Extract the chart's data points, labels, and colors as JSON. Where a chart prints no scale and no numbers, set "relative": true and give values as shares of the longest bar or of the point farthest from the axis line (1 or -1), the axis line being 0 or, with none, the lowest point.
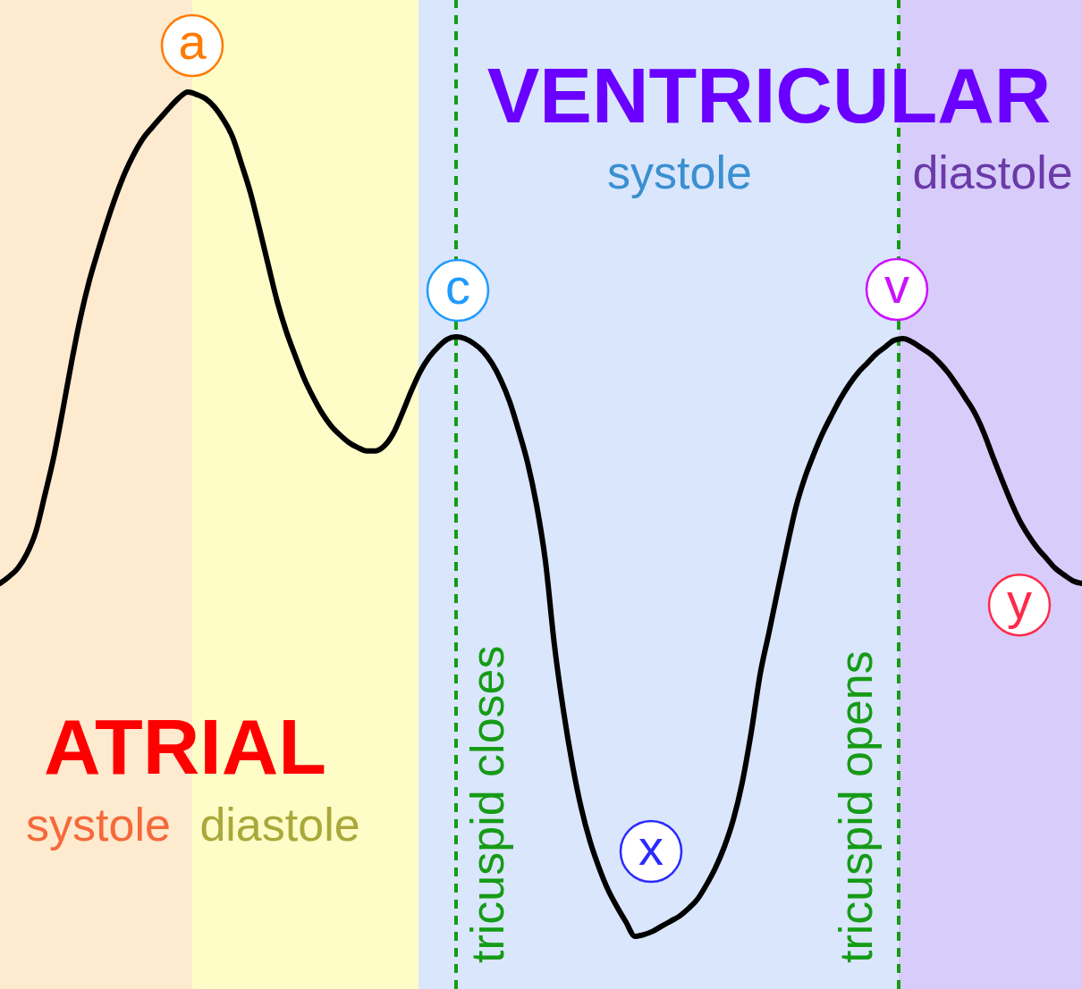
{
  "chart_data": {
    "type": "line",
    "relative": true,
    "tick_labels": false,
    "marker": "none",
    "color": "#000000",
    "categories": [
      null,
      null,
      null,
      null,
      null,
      null,
      null,
      null,
      null,
      null,
      null,
      null,
      null,
      null,
      null,
      null,
      null,
      null,
      null,
      null,
      null,
      null,
      null,
      null,
      null,
      null,
      null,
      null,
      null,
      null,
      null,
      null,
      null,
      null,
      null,
      null,
      null,
      null,
      null,
      null,
      null,
      null,
      null,
      null,
      null,
      null,
      null,
      null,
      null,
      null,
      null,
      null,
      null,
      null,
      null,
      null,
      null,
      null,
      null,
      null,
      null,
      null,
      null,
      null,
      null,
      null,
      null,
      null,
      null,
      null,
      null,
      null,
      null,
      null,
      null,
      null,
      null,
      null,
      null,
      null,
      null,
      null,
      null,
      null,
      null,
      null,
      null,
      null,
      null,
      null,
      null,
      null,
      null,
      null,
      null,
      null,
      null,
      null,
      null,
      null,
      null,
      null,
      null,
      null,
      null,
      null,
      null,
      null,
      null,
      null,
      null,
      null,
      null,
      null,
      null,
      null,
      null,
      null,
      null,
      null,
      null,
      null
    ],
    "values": [
      0.418,
      0.426,
      0.436,
      0.453,
      0.479,
      0.522,
      0.567,
      0.622,
      0.68,
      0.733,
      0.777,
      0.813,
      0.847,
      0.878,
      0.905,
      0.927,
      0.945,
      0.958,
      0.97,
      0.982,
      0.993,
      1.0,
      0.997,
      0.992,
      0.982,
      0.967,
      0.947,
      0.915,
      0.881,
      0.839,
      0.795,
      0.752,
      0.717,
      0.688,
      0.661,
      0.639,
      0.62,
      0.605,
      0.594,
      0.585,
      0.579,
      0.575,
      0.575,
      0.581,
      0.596,
      0.62,
      0.646,
      0.669,
      0.686,
      0.698,
      0.707,
      0.71,
      0.708,
      0.702,
      0.693,
      0.679,
      0.659,
      0.633,
      0.599,
      0.561,
      0.511,
      0.444,
      0.345,
      0.268,
      0.204,
      0.152,
      0.112,
      0.081,
      0.055,
      0.035,
      0.017,
      0.0,
      0.002,
      0.006,
      0.012,
      0.018,
      0.024,
      0.033,
      0.044,
      0.061,
      0.081,
      0.106,
      0.138,
      0.182,
      0.241,
      0.31,
      0.36,
      0.411,
      0.461,
      0.508,
      0.543,
      0.571,
      0.596,
      0.617,
      0.637,
      0.654,
      0.668,
      0.679,
      0.69,
      0.698,
      0.706,
      0.708,
      0.704,
      0.697,
      0.69,
      0.68,
      0.668,
      0.653,
      0.637,
      0.62,
      0.597,
      0.569,
      0.542,
      0.516,
      0.493,
      0.475,
      0.46,
      0.448,
      0.436,
      0.428,
      0.421,
      0.418
    ],
    "annotations": [
      "ATRIAL",
      "systole",
      "diastole",
      "VENTRICULAR",
      "systole",
      "diastole",
      "tricuspid closes",
      "tricuspid opens",
      {
        "text": "a",
        "y": 1.0
      },
      {
        "text": "c",
        "y": 0.71
      },
      {
        "text": "x",
        "y": 0.0
      },
      {
        "text": "v",
        "y": 0.708
      },
      {
        "text": "y",
        "y": 0.493
      }
    ]
  }
}
